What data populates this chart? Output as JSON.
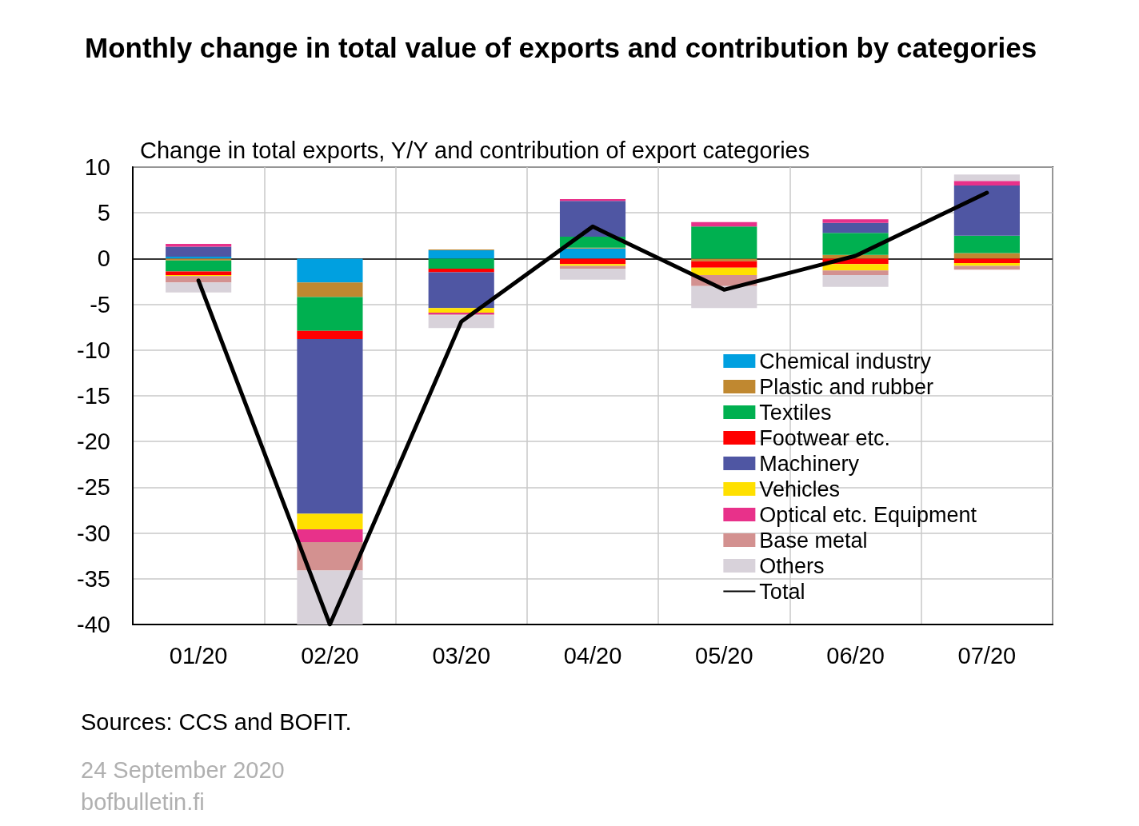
{
  "chart_data": {
    "type": "bar",
    "title": "Monthly change in total value of exports and contribution by categories",
    "subtitle": "Change in total exports, Y/Y and contribution of export categories",
    "annotations": [
      "Sources: CCS and BOFIT.",
      "24 September 2020",
      "bofbulletin.fi"
    ],
    "categories": [
      "01/20",
      "02/20",
      "03/20",
      "04/20",
      "05/20",
      "06/20",
      "07/20"
    ],
    "stacked": true,
    "ylim": [
      -40,
      10
    ],
    "yticks": [
      -40,
      -35,
      -30,
      -25,
      -20,
      -15,
      -10,
      -5,
      0,
      5,
      10
    ],
    "grid": true,
    "legend": "right",
    "ref_lines": [
      {
        "axis": "y",
        "value": 0,
        "color": "#000000"
      }
    ],
    "series": [
      {
        "name": "Chemical industry",
        "color": "#00a0e0",
        "values": [
          0.2,
          -2.6,
          0.9,
          1.1,
          0,
          0,
          0
        ]
      },
      {
        "name": "Plastic and rubber",
        "color": "#c08830",
        "values": [
          -0.2,
          -1.6,
          0.1,
          0.1,
          -0.3,
          0.4,
          0.6
        ]
      },
      {
        "name": "Textiles",
        "color": "#00b050",
        "values": [
          -1.2,
          -3.7,
          -1.1,
          1.2,
          3.5,
          2.4,
          1.9
        ]
      },
      {
        "name": "Footwear etc.",
        "color": "#ff0000",
        "values": [
          -0.4,
          -0.9,
          -0.4,
          -0.6,
          -0.7,
          -0.6,
          -0.5
        ]
      },
      {
        "name": "Machinery",
        "color": "#4f56a3",
        "values": [
          1.1,
          -19.1,
          -3.9,
          3.9,
          0,
          1.1,
          5.5
        ]
      },
      {
        "name": "Vehicles",
        "color": "#ffe000",
        "values": [
          -0.1,
          -1.7,
          -0.5,
          -0.2,
          -0.8,
          -0.7,
          -0.3
        ]
      },
      {
        "name": "Optical etc. Equipment",
        "color": "#e8318a",
        "values": [
          0.3,
          -1.4,
          -0.2,
          0.2,
          0.5,
          0.4,
          0.5
        ]
      },
      {
        "name": "Base metal",
        "color": "#d39190",
        "values": [
          -0.7,
          -3.1,
          -0.1,
          -0.3,
          -1.2,
          -0.5,
          -0.4
        ]
      },
      {
        "name": "Others",
        "color": "#d8d2da",
        "values": [
          -1.1,
          -5.9,
          -1.4,
          -1.2,
          -2.4,
          -1.3,
          0.7
        ]
      },
      {
        "name": "Total",
        "type": "line",
        "color": "#000000",
        "values": [
          -2.4,
          -40,
          -6.9,
          3.5,
          -3.4,
          0.3,
          7.2
        ],
        "marker": "none",
        "line_style": "solid"
      }
    ]
  }
}
